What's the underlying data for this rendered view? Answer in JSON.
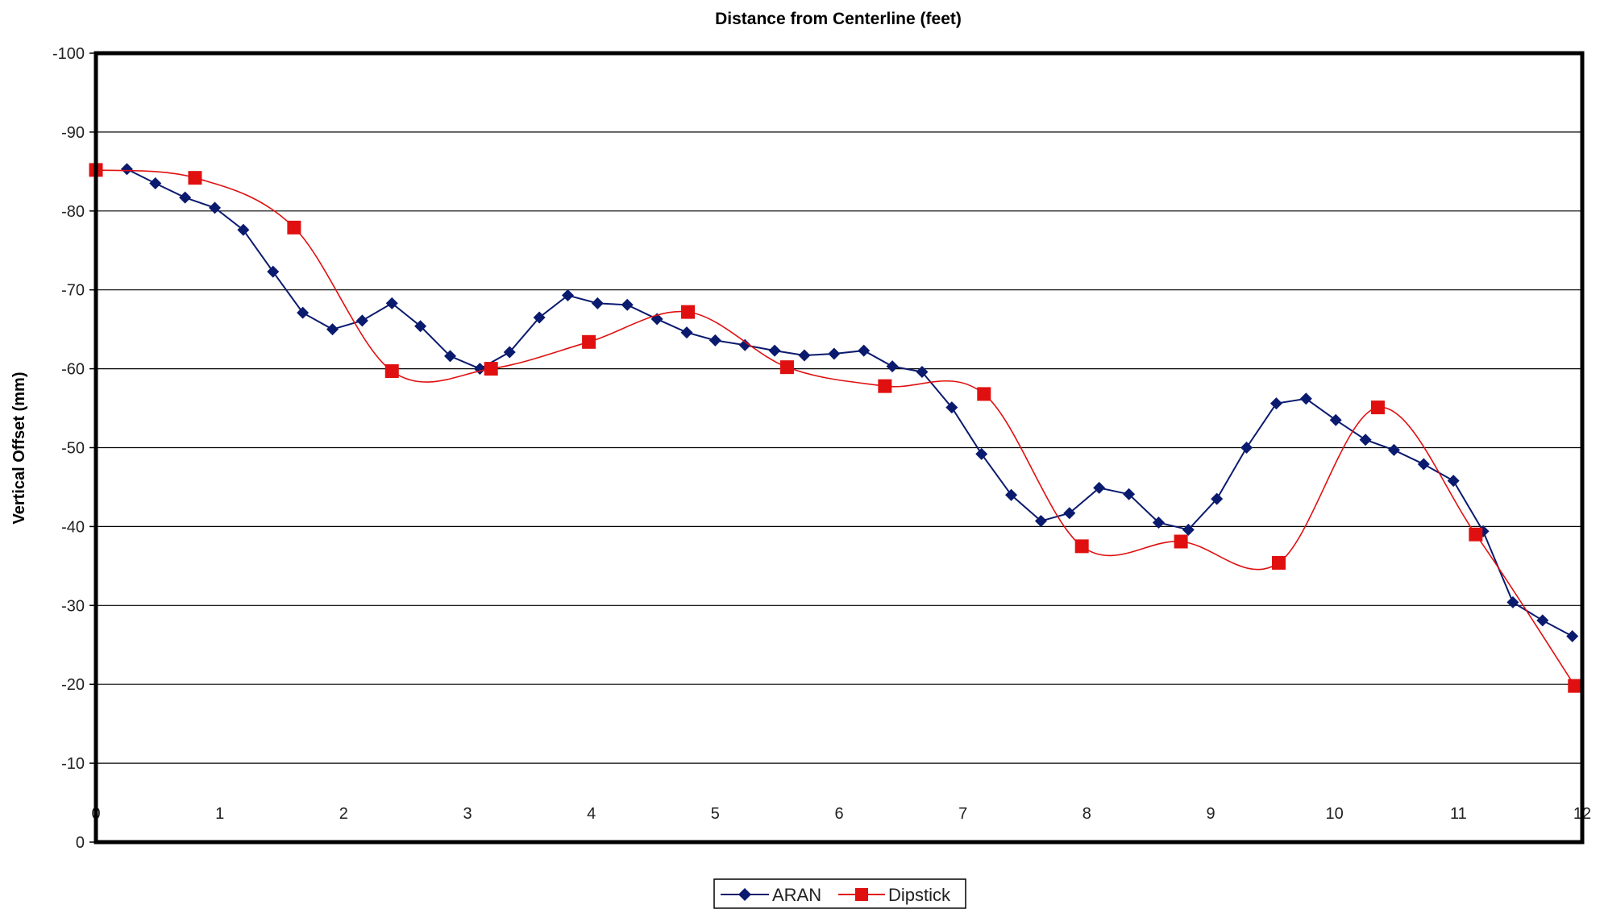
{
  "chart_data": {
    "type": "line",
    "title": "Distance from Centerline (feet)",
    "xlabel": "",
    "ylabel": "Vertical Offset (mm)",
    "xlim": [
      0,
      12
    ],
    "ylim": [
      0,
      -100
    ],
    "y_reversed": true,
    "x_ticks": [
      "0",
      "1",
      "2",
      "3",
      "4",
      "5",
      "6",
      "7",
      "8",
      "9",
      "10",
      "11",
      "12"
    ],
    "y_ticks": [
      "-100",
      "-90",
      "-80",
      "-70",
      "-60",
      "-50",
      "-40",
      "-30",
      "-20",
      "-10",
      "0"
    ],
    "grid": "horizontal",
    "legend_position": "bottom-center",
    "series": [
      {
        "name": "ARAN",
        "color": "#0a1a6e",
        "marker": "diamond",
        "line": "straight",
        "x": [
          0.25,
          0.48,
          0.72,
          0.96,
          1.19,
          1.43,
          1.67,
          1.91,
          2.15,
          2.39,
          2.62,
          2.86,
          3.1,
          3.34,
          3.58,
          3.81,
          4.05,
          4.29,
          4.53,
          4.77,
          5.0,
          5.24,
          5.48,
          5.72,
          5.96,
          6.2,
          6.43,
          6.67,
          6.91,
          7.15,
          7.39,
          7.63,
          7.86,
          8.1,
          8.34,
          8.58,
          8.82,
          9.05,
          9.29,
          9.53,
          9.77,
          10.01,
          10.25,
          10.48,
          10.72,
          10.96,
          11.2,
          11.44,
          11.68,
          11.92
        ],
        "y": [
          -85.3,
          -83.5,
          -81.7,
          -80.4,
          -77.6,
          -72.3,
          -67.1,
          -65.0,
          -66.1,
          -68.3,
          -65.4,
          -61.6,
          -60.0,
          -62.1,
          -66.5,
          -69.3,
          -68.3,
          -68.1,
          -66.3,
          -64.6,
          -63.6,
          -63.0,
          -62.3,
          -61.7,
          -61.9,
          -62.3,
          -60.3,
          -59.6,
          -55.1,
          -49.2,
          -44.0,
          -40.7,
          -41.7,
          -44.9,
          -44.1,
          -40.5,
          -39.6,
          -43.5,
          -50.0,
          -55.6,
          -56.2,
          -53.5,
          -51.0,
          -49.7,
          -47.9,
          -45.8,
          -39.4,
          -30.4,
          -28.1,
          -26.1
        ]
      },
      {
        "name": "Dipstick",
        "color": "#e01010",
        "marker": "square",
        "line": "smooth",
        "x": [
          0.0,
          0.8,
          1.6,
          2.39,
          3.19,
          3.98,
          4.78,
          5.58,
          6.37,
          7.17,
          7.96,
          8.76,
          9.55,
          10.35,
          11.14,
          11.94
        ],
        "y": [
          -85.2,
          -84.2,
          -77.9,
          -59.7,
          -60.0,
          -63.4,
          -67.2,
          -60.2,
          -57.8,
          -56.8,
          -37.5,
          -38.1,
          -35.4,
          -55.1,
          -39.0,
          -19.8
        ]
      }
    ]
  }
}
